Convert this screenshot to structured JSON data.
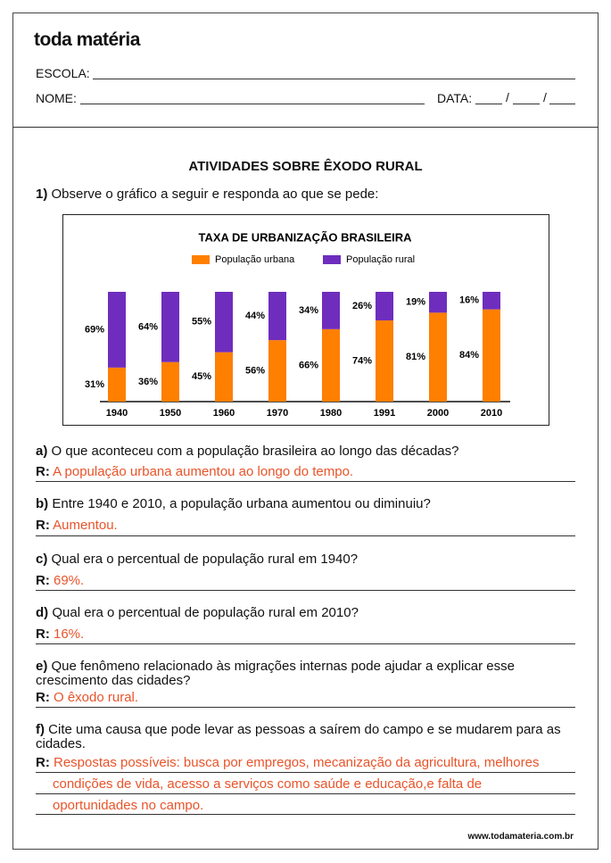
{
  "header": {
    "logo": "toda matéria",
    "school_label": "ESCOLA:",
    "name_label": "NOME:",
    "date_label": "DATA:",
    "date_separator": "/"
  },
  "title": "ATIVIDADES SOBRE ÊXODO RURAL",
  "question_1": {
    "number": "1)",
    "text": "Observe o gráfico a seguir e responda ao que se pede:"
  },
  "chart_data": {
    "type": "bar",
    "stacked": true,
    "title": "TAXA DE URBANIZAÇÃO BRASILEIRA",
    "categories": [
      "1940",
      "1950",
      "1960",
      "1970",
      "1980",
      "1991",
      "2000",
      "2010"
    ],
    "series": [
      {
        "name": "População urbana",
        "color": "#ff7f00",
        "values": [
          31,
          36,
          45,
          56,
          66,
          74,
          81,
          84
        ],
        "value_labels": [
          "31%",
          "36%",
          "45%",
          "56%",
          "66%",
          "74%",
          "81%",
          "84%"
        ]
      },
      {
        "name": "População rural",
        "color": "#6f2dbd",
        "values": [
          69,
          64,
          55,
          44,
          34,
          26,
          19,
          16
        ],
        "value_labels": [
          "69%",
          "64%",
          "55%",
          "44%",
          "34%",
          "26%",
          "19%",
          "16%"
        ]
      }
    ]
  },
  "questions": [
    {
      "letter": "a)",
      "text": "O que aconteceu com a população brasileira ao longo das décadas?",
      "answer_label": "R:",
      "answer": [
        "A população urbana aumentou ao longo do tempo."
      ]
    },
    {
      "letter": "b)",
      "text": "Entre 1940 e 2010, a população urbana aumentou ou diminuiu?",
      "answer_label": "R:",
      "answer": [
        "Aumentou."
      ]
    },
    {
      "letter": "c)",
      "text": "Qual era o percentual de população rural em 1940?",
      "answer_label": "R:",
      "answer": [
        "69%."
      ]
    },
    {
      "letter": "d)",
      "text": "Qual era o percentual de população rural em 2010?",
      "answer_label": "R:",
      "answer": [
        "16%."
      ]
    },
    {
      "letter": "e)",
      "text": "Que fenômeno relacionado às migrações internas pode ajudar a explicar esse crescimento das cidades?",
      "answer_label": "R:",
      "answer": [
        "O êxodo rural."
      ]
    },
    {
      "letter": "f)",
      "text": "Cite uma causa que pode levar as pessoas a saírem do campo e se mudarem para as cidades.",
      "answer_label": "R:",
      "answer": [
        "Respostas possíveis: busca por empregos, mecanização da agricultura, melhores",
        "condições de vida, acesso a serviços como saúde e educação,e falta de",
        "oportunidades no campo."
      ]
    }
  ],
  "footer": "www.todamateria.com.br"
}
